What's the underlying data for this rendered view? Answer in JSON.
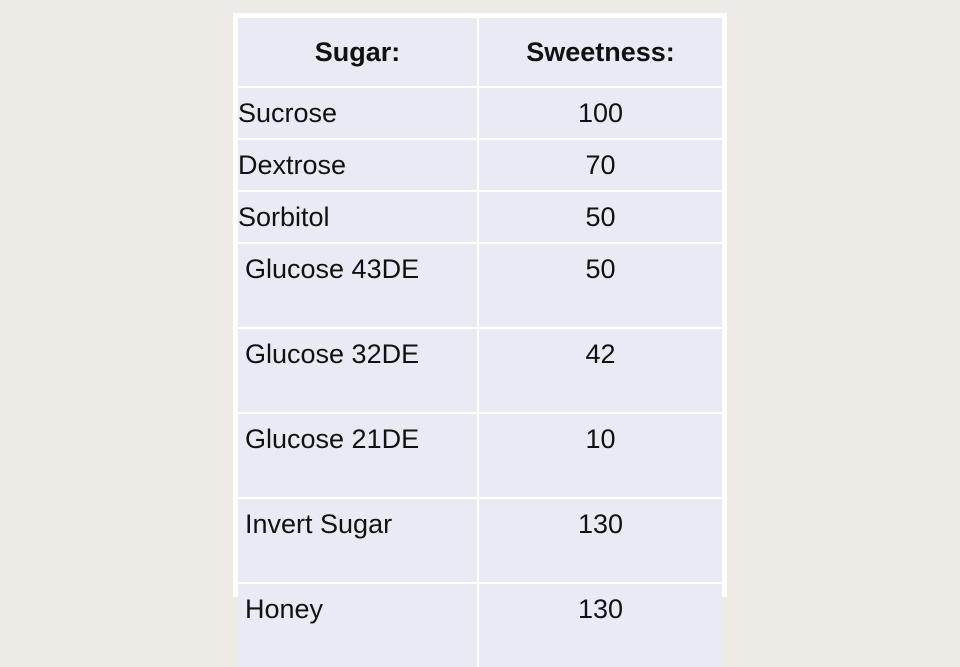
{
  "table": {
    "headers": {
      "sugar": "Sugar:",
      "sweetness": "Sweetness:"
    },
    "rows": [
      {
        "sugar": "Sucrose",
        "sweetness": "100"
      },
      {
        "sugar": "Dextrose",
        "sweetness": "70"
      },
      {
        "sugar": "Sorbitol",
        "sweetness": "50"
      },
      {
        "sugar": "Glucose 43DE",
        "sweetness": "50"
      },
      {
        "sugar": "Glucose 32DE",
        "sweetness": "42"
      },
      {
        "sugar": "Glucose 21DE",
        "sweetness": "10"
      },
      {
        "sugar": "Invert Sugar",
        "sweetness": "130"
      },
      {
        "sugar": "Honey",
        "sweetness": "130"
      }
    ]
  },
  "colors": {
    "background": "#efebe6",
    "card": "#ffffff",
    "cell": "#e8ebf4",
    "text": "#111111"
  }
}
